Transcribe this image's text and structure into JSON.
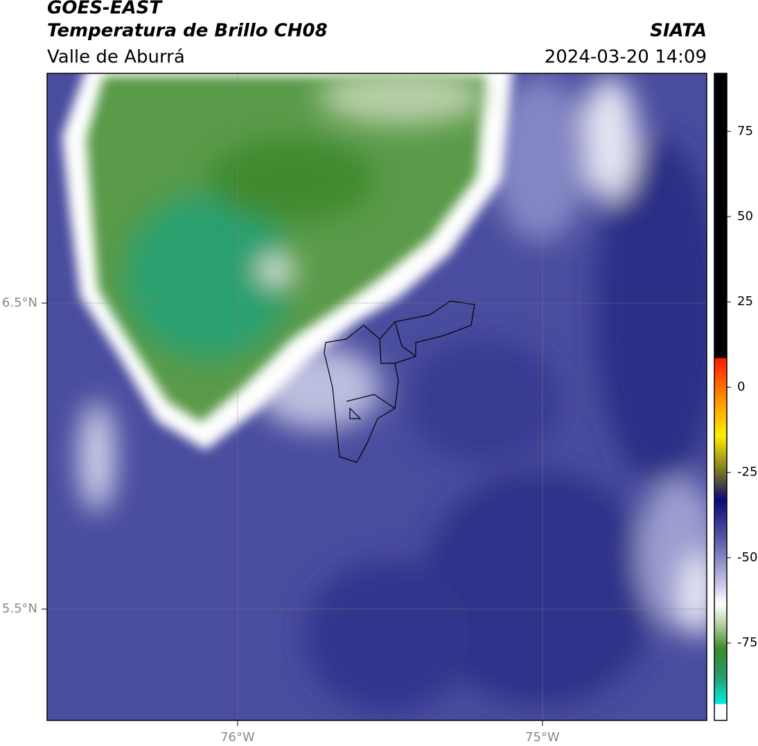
{
  "header": {
    "title": "GOES-EAST",
    "subtitle": "Temperatura de Brillo CH08",
    "region": "Valle de Aburrá",
    "source": "SIATA",
    "datetime": "2024-03-20 14:09"
  },
  "map": {
    "lonlim": [
      -76.625,
      -74.461
    ],
    "latlim": [
      5.136,
      7.251
    ],
    "lon_ticks": [
      {
        "value": -76,
        "label": "76°W"
      },
      {
        "value": -75,
        "label": "75°W"
      }
    ],
    "lat_ticks": [
      {
        "value": 6.5,
        "label": "6.5°N"
      },
      {
        "value": 5.5,
        "label": "5.5°N"
      }
    ]
  },
  "colorbar": {
    "lim": [
      -97.7,
      92
    ],
    "ticks": [
      75,
      50,
      25,
      0,
      -25,
      -50,
      -75
    ]
  }
}
